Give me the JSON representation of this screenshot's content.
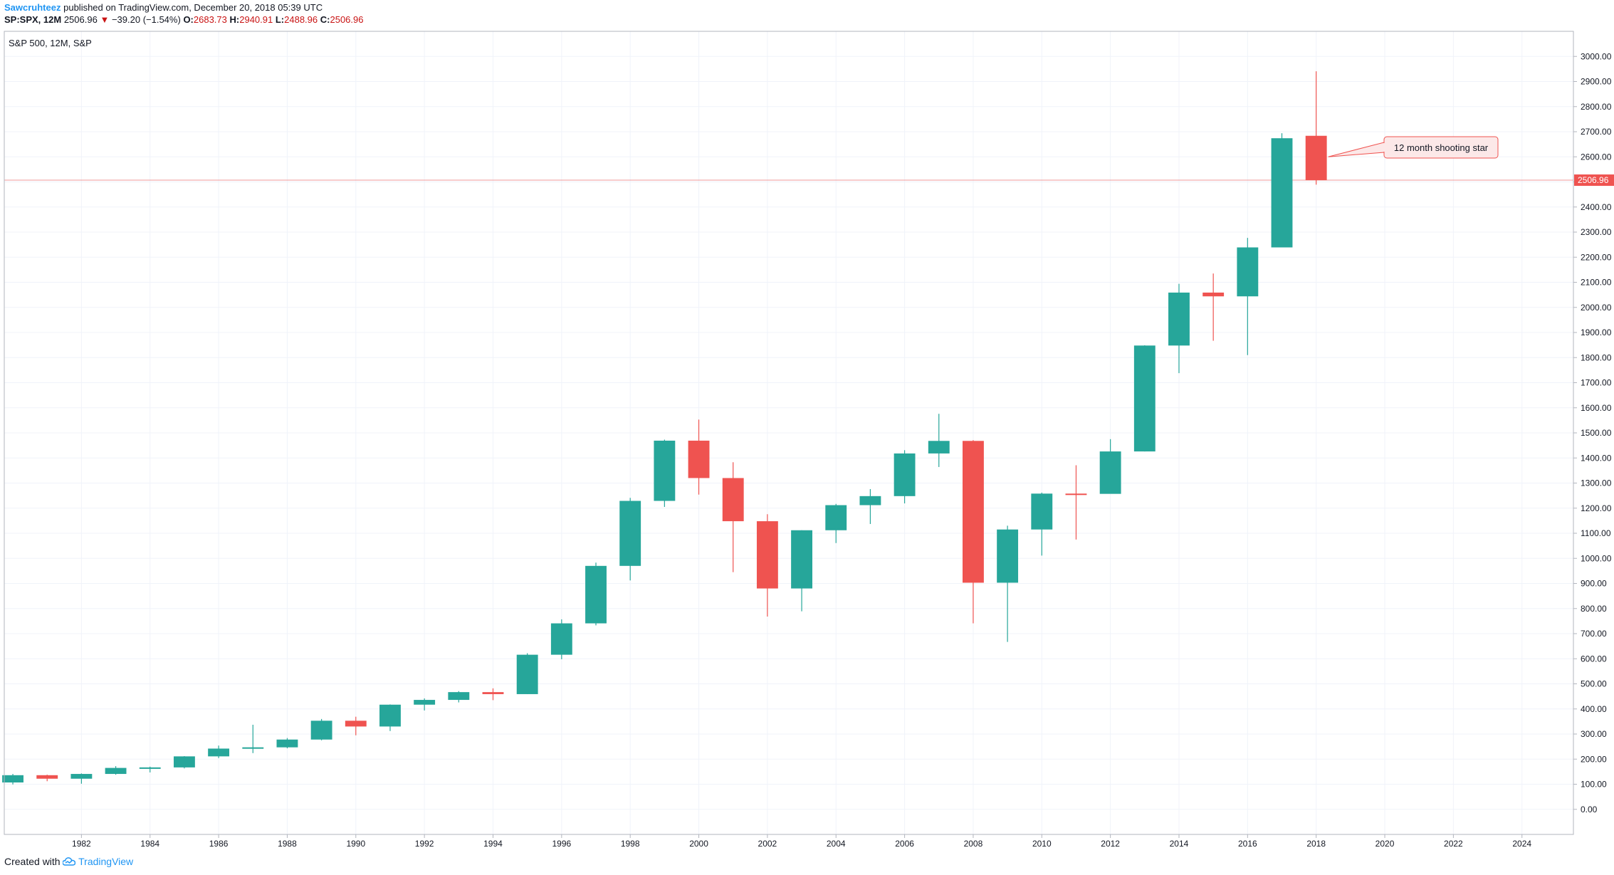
{
  "header": {
    "author": "Sawcruhteez",
    "published_text": "published on TradingView.com, December 20, 2018 05:39 UTC",
    "symbol": "SP:SPX, 12M",
    "last": "2506.96",
    "change": "−39.20 (−1.54%)",
    "o_label": "O:",
    "o_value": "2683.73",
    "h_label": "H:",
    "h_value": "2940.91",
    "l_label": "L:",
    "l_value": "2488.96",
    "c_label": "C:",
    "c_value": "2506.96",
    "colors": {
      "up": "#26a69a",
      "down": "#ef5350",
      "author": "#2196f3",
      "change": "#c91414"
    }
  },
  "footer": {
    "created_with": "Created with",
    "brand": "TradingView",
    "icon": "tradingview-cloud-icon"
  },
  "chart_data": {
    "type": "candlestick",
    "title": "S&P 500, 12M, S&P",
    "ylim": [
      -100,
      3100
    ],
    "y_ticks": [
      0,
      100,
      200,
      300,
      400,
      500,
      600,
      700,
      800,
      900,
      1000,
      1100,
      1200,
      1300,
      1400,
      1500,
      1600,
      1700,
      1800,
      1900,
      2000,
      2100,
      2200,
      2300,
      2400,
      2500,
      2600,
      2700,
      2800,
      2900,
      3000
    ],
    "x_ticks": [
      1982,
      1984,
      1986,
      1988,
      1990,
      1992,
      1994,
      1996,
      1998,
      2000,
      2002,
      2004,
      2006,
      2008,
      2010,
      2012,
      2014,
      2016,
      2018,
      2020,
      2022,
      2024
    ],
    "xlim": [
      1979.75,
      2025.5
    ],
    "last_price_line": 2506.96,
    "last_price_label": "2506.96",
    "annotation": {
      "text": "12 month shooting star",
      "year": 2018,
      "value": 2600
    },
    "candles": [
      {
        "year": 1980,
        "o": 107,
        "h": 141,
        "l": 99,
        "c": 136
      },
      {
        "year": 1981,
        "o": 136,
        "h": 138,
        "l": 112,
        "c": 122
      },
      {
        "year": 1982,
        "o": 122,
        "h": 143,
        "l": 102,
        "c": 141
      },
      {
        "year": 1983,
        "o": 141,
        "h": 172,
        "l": 138,
        "c": 165
      },
      {
        "year": 1984,
        "o": 165,
        "h": 170,
        "l": 147,
        "c": 167
      },
      {
        "year": 1985,
        "o": 167,
        "h": 212,
        "l": 163,
        "c": 211
      },
      {
        "year": 1986,
        "o": 211,
        "h": 254,
        "l": 204,
        "c": 242
      },
      {
        "year": 1987,
        "o": 242,
        "h": 337,
        "l": 224,
        "c": 247
      },
      {
        "year": 1988,
        "o": 247,
        "h": 284,
        "l": 243,
        "c": 278
      },
      {
        "year": 1989,
        "o": 278,
        "h": 360,
        "l": 275,
        "c": 353
      },
      {
        "year": 1990,
        "o": 353,
        "h": 369,
        "l": 295,
        "c": 330
      },
      {
        "year": 1991,
        "o": 330,
        "h": 418,
        "l": 312,
        "c": 417
      },
      {
        "year": 1992,
        "o": 417,
        "h": 442,
        "l": 394,
        "c": 436
      },
      {
        "year": 1993,
        "o": 436,
        "h": 471,
        "l": 426,
        "c": 467
      },
      {
        "year": 1994,
        "o": 467,
        "h": 482,
        "l": 435,
        "c": 459
      },
      {
        "year": 1995,
        "o": 459,
        "h": 622,
        "l": 459,
        "c": 616
      },
      {
        "year": 1996,
        "o": 616,
        "h": 757,
        "l": 598,
        "c": 741
      },
      {
        "year": 1997,
        "o": 741,
        "h": 983,
        "l": 733,
        "c": 970
      },
      {
        "year": 1998,
        "o": 970,
        "h": 1241,
        "l": 912,
        "c": 1229
      },
      {
        "year": 1999,
        "o": 1229,
        "h": 1473,
        "l": 1205,
        "c": 1469
      },
      {
        "year": 2000,
        "o": 1469,
        "h": 1553,
        "l": 1254,
        "c": 1320
      },
      {
        "year": 2001,
        "o": 1320,
        "h": 1383,
        "l": 945,
        "c": 1148
      },
      {
        "year": 2002,
        "o": 1148,
        "h": 1176,
        "l": 768,
        "c": 880
      },
      {
        "year": 2003,
        "o": 880,
        "h": 1112,
        "l": 789,
        "c": 1112
      },
      {
        "year": 2004,
        "o": 1112,
        "h": 1217,
        "l": 1061,
        "c": 1212
      },
      {
        "year": 2005,
        "o": 1212,
        "h": 1276,
        "l": 1137,
        "c": 1248
      },
      {
        "year": 2006,
        "o": 1248,
        "h": 1431,
        "l": 1219,
        "c": 1418
      },
      {
        "year": 2007,
        "o": 1418,
        "h": 1576,
        "l": 1364,
        "c": 1468
      },
      {
        "year": 2008,
        "o": 1468,
        "h": 1471,
        "l": 741,
        "c": 903
      },
      {
        "year": 2009,
        "o": 903,
        "h": 1130,
        "l": 667,
        "c": 1115
      },
      {
        "year": 2010,
        "o": 1115,
        "h": 1262,
        "l": 1011,
        "c": 1258
      },
      {
        "year": 2011,
        "o": 1258,
        "h": 1371,
        "l": 1075,
        "c": 1257
      },
      {
        "year": 2012,
        "o": 1257,
        "h": 1475,
        "l": 1259,
        "c": 1426
      },
      {
        "year": 2013,
        "o": 1426,
        "h": 1849,
        "l": 1426,
        "c": 1848
      },
      {
        "year": 2014,
        "o": 1848,
        "h": 2094,
        "l": 1738,
        "c": 2059
      },
      {
        "year": 2015,
        "o": 2059,
        "h": 2135,
        "l": 1867,
        "c": 2044
      },
      {
        "year": 2016,
        "o": 2044,
        "h": 2277,
        "l": 1810,
        "c": 2239
      },
      {
        "year": 2017,
        "o": 2239,
        "h": 2694,
        "l": 2246,
        "c": 2674
      },
      {
        "year": 2018,
        "o": 2683.73,
        "h": 2940.91,
        "l": 2488.96,
        "c": 2506.96
      }
    ]
  }
}
